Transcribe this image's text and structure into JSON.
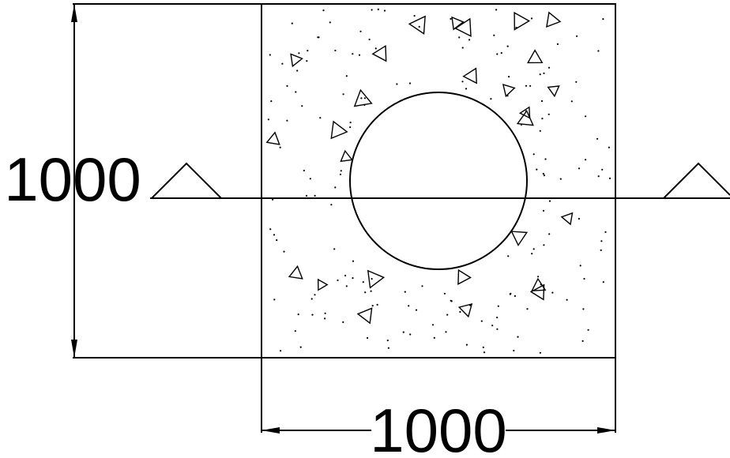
{
  "drawing": {
    "height_dimension_label": "1000",
    "width_dimension_label": "1000",
    "line_color": "#000000",
    "background_color": "#ffffff"
  }
}
